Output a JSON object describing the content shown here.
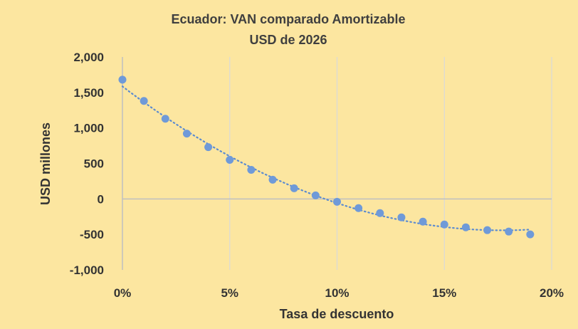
{
  "chart_data": {
    "type": "scatter",
    "title": "Ecuador: VAN comparado Amortizable",
    "subtitle": "USD de 2026",
    "xlabel": "Tasa de descuento",
    "ylabel": "USD millones",
    "xlim": [
      0,
      20
    ],
    "ylim": [
      -1000,
      2000
    ],
    "x_ticks": [
      0,
      5,
      10,
      15,
      20
    ],
    "x_tick_labels": [
      "0%",
      "5%",
      "10%",
      "15%",
      "20%"
    ],
    "y_ticks": [
      2000,
      1500,
      1000,
      500,
      0,
      -500,
      -1000
    ],
    "y_tick_labels": [
      "2,000",
      "1,500",
      "1,000",
      "500",
      "0",
      "-500",
      "-1,000"
    ],
    "grid": "vertical",
    "trendline": "dotted polynomial",
    "colors": {
      "points": "#6F9AD8",
      "trend": "#5B8BD0",
      "grid": "#D9D9D9",
      "axis": "#BFBFBF",
      "background": "#FCE6A0"
    },
    "series": [
      {
        "x": [
          0,
          1,
          2,
          3,
          4,
          5,
          6,
          7,
          8,
          9,
          10,
          11,
          12,
          13,
          14,
          15,
          16,
          17,
          18,
          19
        ],
        "values": [
          1680,
          1380,
          1130,
          920,
          730,
          550,
          410,
          270,
          150,
          50,
          -40,
          -130,
          -200,
          -260,
          -320,
          -360,
          -400,
          -440,
          -460,
          -500
        ]
      }
    ]
  }
}
